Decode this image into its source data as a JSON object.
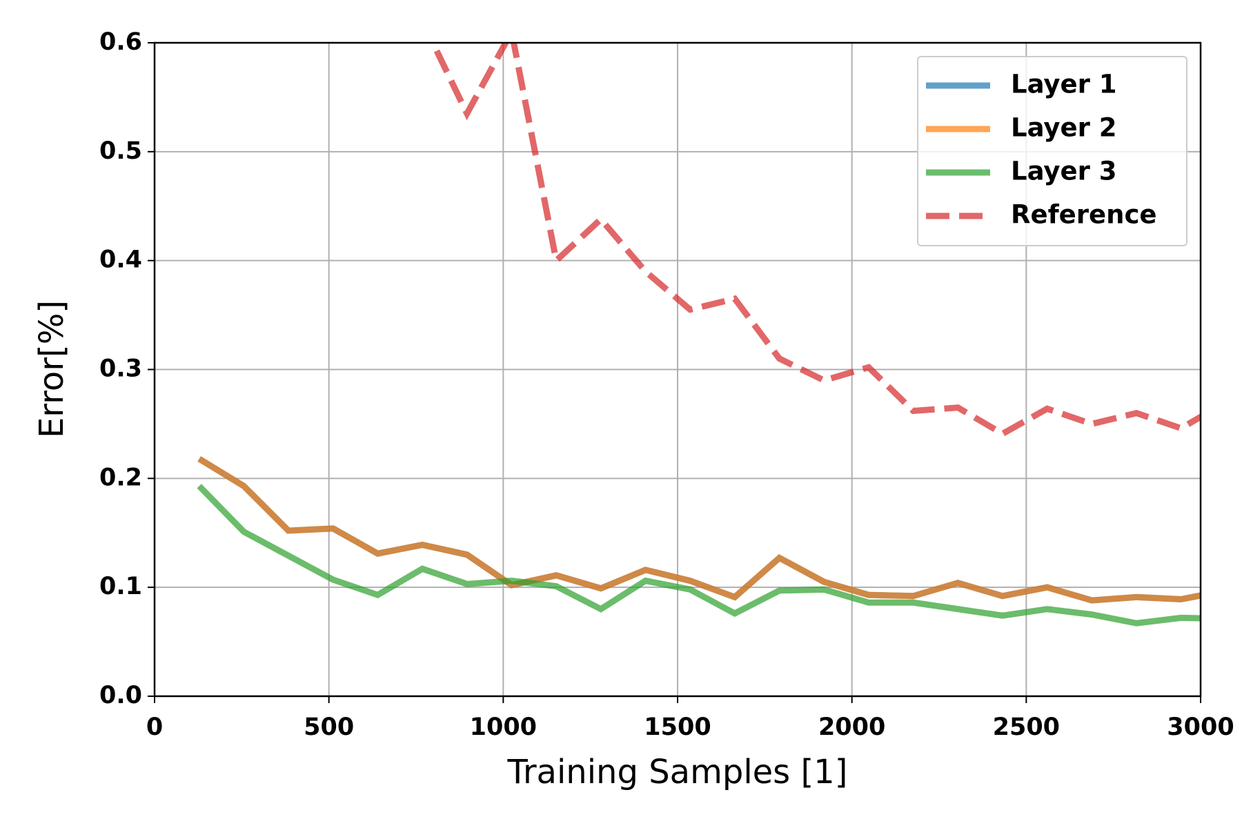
{
  "chart_data": {
    "type": "line",
    "xlabel": "Training Samples [1]",
    "ylabel": "Error[%]",
    "x": [
      128,
      256,
      384,
      512,
      640,
      768,
      896,
      1024,
      1152,
      1280,
      1408,
      1536,
      1664,
      1792,
      1920,
      2048,
      2176,
      2304,
      2432,
      2560,
      2688,
      2816,
      2944,
      3072
    ],
    "series": [
      {
        "name": "Layer 1",
        "color": "#1f77b4",
        "dash": false,
        "values": [
          0.218,
          0.193,
          0.152,
          0.154,
          0.131,
          0.139,
          0.13,
          0.102,
          0.111,
          0.099,
          0.116,
          0.106,
          0.091,
          0.127,
          0.105,
          0.093,
          0.092,
          0.104,
          0.092,
          0.1,
          0.088,
          0.091,
          0.089,
          0.097
        ]
      },
      {
        "name": "Layer 2",
        "color": "#ff7f0e",
        "dash": false,
        "values": [
          0.218,
          0.193,
          0.152,
          0.154,
          0.131,
          0.139,
          0.13,
          0.102,
          0.111,
          0.099,
          0.116,
          0.106,
          0.091,
          0.127,
          0.105,
          0.093,
          0.092,
          0.104,
          0.092,
          0.1,
          0.088,
          0.091,
          0.089,
          0.097
        ]
      },
      {
        "name": "Layer 3",
        "color": "#2ca02c",
        "dash": false,
        "values": [
          0.193,
          0.151,
          0.129,
          0.107,
          0.093,
          0.117,
          0.103,
          0.106,
          0.101,
          0.08,
          0.106,
          0.098,
          0.076,
          0.097,
          0.098,
          0.086,
          0.086,
          0.08,
          0.074,
          0.08,
          0.075,
          0.067,
          0.072,
          0.071
        ]
      },
      {
        "name": "Reference",
        "color": "#d62728",
        "dash": true,
        "values": [
          null,
          null,
          null,
          null,
          null,
          0.62,
          0.535,
          0.61,
          0.4,
          0.438,
          0.39,
          0.355,
          0.365,
          0.31,
          0.29,
          0.302,
          0.262,
          0.265,
          0.241,
          0.264,
          0.25,
          0.26,
          0.246,
          0.27
        ]
      }
    ],
    "xlim": [
      0,
      3000
    ],
    "xticks": [
      0,
      500,
      1000,
      1500,
      2000,
      2500,
      3000
    ],
    "ylim": [
      0,
      0.6
    ],
    "yticks": [
      {
        "value": 0,
        "label": "0.0"
      },
      0.1,
      0.2,
      0.3,
      0.4,
      0.5,
      0.6
    ],
    "grid": true,
    "legend": "upper right"
  }
}
